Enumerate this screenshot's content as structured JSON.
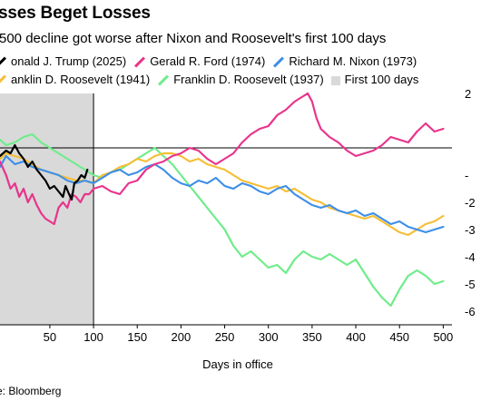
{
  "header": {
    "title": "sses Beget Losses",
    "subtitle": "500 decline got worse after Nixon and Roosevelt's first 100 days"
  },
  "legend": [
    {
      "label": "onald J. Trump (2025)",
      "color": "#000000",
      "kind": "line"
    },
    {
      "label": "Gerald R. Ford (1974)",
      "color": "#e8348c",
      "kind": "line"
    },
    {
      "label": "Richard M. Nixon (1973)",
      "color": "#3d8fe8",
      "kind": "line"
    },
    {
      "label": "anklin D. Roosevelt (1941)",
      "color": "#f5be35",
      "kind": "line"
    },
    {
      "label": "Franklin D. Roosevelt (1937)",
      "color": "#6fec8a",
      "kind": "line"
    },
    {
      "label": "First 100 days",
      "color": "#d9d9d9",
      "kind": "box"
    }
  ],
  "footer": {
    "source": "e: Bloomberg"
  },
  "chart_data": {
    "type": "line",
    "title": "sses Beget Losses",
    "subtitle": "500 decline got worse after Nixon and Roosevelt's first 100 days",
    "xlabel": "Days in office",
    "ylabel": "",
    "xlim": [
      -7,
      510
    ],
    "ylim": [
      -65,
      20
    ],
    "x_ticks": [
      50,
      100,
      150,
      200,
      250,
      300,
      350,
      400,
      450,
      500
    ],
    "y_ticks": [
      20,
      10,
      0,
      -10,
      -20,
      -30,
      -40,
      -50,
      -60
    ],
    "y_tick_labels": [
      "2",
      "",
      "",
      "-",
      "-2",
      "-3",
      "-4",
      "-5",
      "-6"
    ],
    "shaded_region": {
      "x_start": -7,
      "x_end": 100,
      "label": "First 100 days",
      "color": "#d9d9d9"
    },
    "zero_line": 0,
    "grid": false,
    "legend_position": "top",
    "series": [
      {
        "name": "onald J. Trump (2025)",
        "color": "#000000",
        "points": [
          [
            -7,
            -3
          ],
          [
            0,
            -1
          ],
          [
            5,
            -2
          ],
          [
            10,
            1
          ],
          [
            15,
            -2
          ],
          [
            20,
            -4
          ],
          [
            25,
            -7
          ],
          [
            30,
            -5
          ],
          [
            35,
            -8
          ],
          [
            40,
            -10
          ],
          [
            45,
            -12
          ],
          [
            50,
            -15
          ],
          [
            55,
            -14
          ],
          [
            60,
            -16
          ],
          [
            65,
            -18
          ],
          [
            68,
            -14
          ],
          [
            72,
            -17
          ],
          [
            75,
            -19
          ],
          [
            78,
            -13
          ],
          [
            82,
            -12
          ],
          [
            86,
            -10
          ],
          [
            90,
            -11
          ],
          [
            93,
            -8
          ]
        ]
      },
      {
        "name": "Gerald R. Ford (1974)",
        "color": "#e8348c",
        "points": [
          [
            -7,
            -5
          ],
          [
            0,
            -10
          ],
          [
            5,
            -15
          ],
          [
            10,
            -13
          ],
          [
            15,
            -18
          ],
          [
            20,
            -15
          ],
          [
            25,
            -20
          ],
          [
            30,
            -17
          ],
          [
            35,
            -21
          ],
          [
            40,
            -24
          ],
          [
            45,
            -26
          ],
          [
            50,
            -27
          ],
          [
            55,
            -28
          ],
          [
            60,
            -22
          ],
          [
            65,
            -20
          ],
          [
            70,
            -22
          ],
          [
            75,
            -17
          ],
          [
            80,
            -18
          ],
          [
            85,
            -20
          ],
          [
            90,
            -17
          ],
          [
            95,
            -17
          ],
          [
            100,
            -15
          ],
          [
            110,
            -14
          ],
          [
            120,
            -16
          ],
          [
            130,
            -17
          ],
          [
            140,
            -13
          ],
          [
            150,
            -12
          ],
          [
            160,
            -8
          ],
          [
            170,
            -6
          ],
          [
            180,
            -5
          ],
          [
            190,
            -3
          ],
          [
            200,
            -2
          ],
          [
            210,
            0
          ],
          [
            220,
            -1
          ],
          [
            230,
            -4
          ],
          [
            240,
            -6
          ],
          [
            250,
            -4
          ],
          [
            260,
            -2
          ],
          [
            270,
            2
          ],
          [
            280,
            5
          ],
          [
            290,
            7
          ],
          [
            300,
            8
          ],
          [
            310,
            12
          ],
          [
            320,
            14
          ],
          [
            330,
            17
          ],
          [
            340,
            19
          ],
          [
            345,
            20
          ],
          [
            350,
            17
          ],
          [
            355,
            11
          ],
          [
            360,
            7
          ],
          [
            370,
            4
          ],
          [
            380,
            2
          ],
          [
            390,
            -1
          ],
          [
            400,
            -3
          ],
          [
            410,
            -2
          ],
          [
            420,
            -1
          ],
          [
            430,
            1
          ],
          [
            440,
            4
          ],
          [
            450,
            3
          ],
          [
            460,
            2
          ],
          [
            470,
            6
          ],
          [
            480,
            9
          ],
          [
            490,
            6
          ],
          [
            500,
            7
          ]
        ]
      },
      {
        "name": "Richard M. Nixon (1973)",
        "color": "#3d8fe8",
        "points": [
          [
            -7,
            -7
          ],
          [
            0,
            -3
          ],
          [
            10,
            -6
          ],
          [
            20,
            -5
          ],
          [
            30,
            -7
          ],
          [
            40,
            -8
          ],
          [
            50,
            -9
          ],
          [
            60,
            -10
          ],
          [
            70,
            -12
          ],
          [
            80,
            -13
          ],
          [
            90,
            -12
          ],
          [
            100,
            -13
          ],
          [
            110,
            -11
          ],
          [
            120,
            -9
          ],
          [
            130,
            -8
          ],
          [
            140,
            -10
          ],
          [
            150,
            -9
          ],
          [
            160,
            -7
          ],
          [
            170,
            -6
          ],
          [
            180,
            -8
          ],
          [
            190,
            -11
          ],
          [
            200,
            -13
          ],
          [
            210,
            -14
          ],
          [
            220,
            -12
          ],
          [
            230,
            -13
          ],
          [
            240,
            -11
          ],
          [
            250,
            -14
          ],
          [
            260,
            -15
          ],
          [
            270,
            -13
          ],
          [
            280,
            -14
          ],
          [
            290,
            -16
          ],
          [
            300,
            -17
          ],
          [
            310,
            -15
          ],
          [
            320,
            -14
          ],
          [
            330,
            -17
          ],
          [
            340,
            -19
          ],
          [
            350,
            -21
          ],
          [
            360,
            -22
          ],
          [
            370,
            -21
          ],
          [
            380,
            -23
          ],
          [
            390,
            -24
          ],
          [
            400,
            -23
          ],
          [
            410,
            -25
          ],
          [
            420,
            -24
          ],
          [
            430,
            -26
          ],
          [
            440,
            -28
          ],
          [
            450,
            -27
          ],
          [
            460,
            -29
          ],
          [
            470,
            -30
          ],
          [
            480,
            -31
          ],
          [
            490,
            -30
          ],
          [
            500,
            -29
          ]
        ]
      },
      {
        "name": "anklin D. Roosevelt (1941)",
        "color": "#f5be35",
        "points": [
          [
            -7,
            -4
          ],
          [
            0,
            -2
          ],
          [
            10,
            -3
          ],
          [
            20,
            -4
          ],
          [
            30,
            -6
          ],
          [
            40,
            -8
          ],
          [
            50,
            -9
          ],
          [
            60,
            -10
          ],
          [
            70,
            -11
          ],
          [
            80,
            -12
          ],
          [
            90,
            -12
          ],
          [
            100,
            -13
          ],
          [
            110,
            -10
          ],
          [
            120,
            -9
          ],
          [
            130,
            -7
          ],
          [
            140,
            -6
          ],
          [
            150,
            -4
          ],
          [
            160,
            -5
          ],
          [
            170,
            -3
          ],
          [
            180,
            -2
          ],
          [
            190,
            -2
          ],
          [
            200,
            -3
          ],
          [
            210,
            -5
          ],
          [
            220,
            -4
          ],
          [
            230,
            -6
          ],
          [
            240,
            -7
          ],
          [
            250,
            -8
          ],
          [
            260,
            -10
          ],
          [
            270,
            -12
          ],
          [
            280,
            -13
          ],
          [
            290,
            -14
          ],
          [
            300,
            -15
          ],
          [
            310,
            -14
          ],
          [
            320,
            -16
          ],
          [
            330,
            -15
          ],
          [
            340,
            -17
          ],
          [
            350,
            -19
          ],
          [
            360,
            -20
          ],
          [
            370,
            -22
          ],
          [
            380,
            -23
          ],
          [
            390,
            -24
          ],
          [
            400,
            -25
          ],
          [
            410,
            -26
          ],
          [
            420,
            -25
          ],
          [
            430,
            -27
          ],
          [
            440,
            -29
          ],
          [
            450,
            -31
          ],
          [
            460,
            -32
          ],
          [
            470,
            -30
          ],
          [
            480,
            -28
          ],
          [
            490,
            -27
          ],
          [
            500,
            -25
          ]
        ]
      },
      {
        "name": "Franklin D. Roosevelt (1937)",
        "color": "#6fec8a",
        "points": [
          [
            -7,
            3
          ],
          [
            0,
            1
          ],
          [
            10,
            2
          ],
          [
            20,
            4
          ],
          [
            30,
            5
          ],
          [
            40,
            2
          ],
          [
            50,
            0
          ],
          [
            60,
            -2
          ],
          [
            70,
            -4
          ],
          [
            80,
            -6
          ],
          [
            90,
            -8
          ],
          [
            100,
            -10
          ],
          [
            110,
            -11
          ],
          [
            120,
            -9
          ],
          [
            130,
            -8
          ],
          [
            140,
            -6
          ],
          [
            150,
            -4
          ],
          [
            160,
            -2
          ],
          [
            170,
            0
          ],
          [
            180,
            -3
          ],
          [
            190,
            -6
          ],
          [
            200,
            -10
          ],
          [
            210,
            -14
          ],
          [
            220,
            -18
          ],
          [
            230,
            -22
          ],
          [
            240,
            -26
          ],
          [
            250,
            -30
          ],
          [
            260,
            -36
          ],
          [
            270,
            -40
          ],
          [
            280,
            -38
          ],
          [
            290,
            -41
          ],
          [
            300,
            -44
          ],
          [
            310,
            -43
          ],
          [
            320,
            -46
          ],
          [
            330,
            -41
          ],
          [
            340,
            -38
          ],
          [
            350,
            -40
          ],
          [
            360,
            -41
          ],
          [
            370,
            -39
          ],
          [
            380,
            -41
          ],
          [
            390,
            -43
          ],
          [
            400,
            -41
          ],
          [
            410,
            -46
          ],
          [
            420,
            -51
          ],
          [
            430,
            -55
          ],
          [
            440,
            -58
          ],
          [
            450,
            -52
          ],
          [
            460,
            -47
          ],
          [
            470,
            -45
          ],
          [
            480,
            -47
          ],
          [
            490,
            -50
          ],
          [
            500,
            -49
          ]
        ]
      }
    ]
  }
}
